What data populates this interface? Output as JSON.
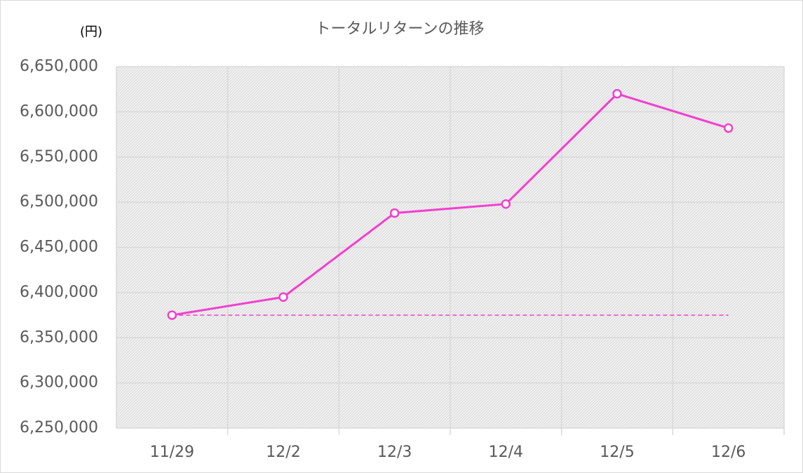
{
  "chart_data": {
    "type": "line",
    "title": "トータルリターンの推移",
    "y_label": "(円)",
    "categories": [
      "11/29",
      "12/2",
      "12/3",
      "12/4",
      "12/5",
      "12/6"
    ],
    "series": [
      {
        "color": "#f23fcf",
        "values": [
          6375000,
          6395000,
          6488000,
          6498000,
          6620000,
          6582000
        ],
        "markers": true
      },
      {
        "color": "#f23fcf",
        "values": [
          6375000,
          6375000,
          6375000,
          6375000,
          6375000,
          6375000
        ],
        "dashed": true
      }
    ],
    "ylim": [
      6250000,
      6650000
    ],
    "yticks": [
      {
        "value": 6250000,
        "label": "6,250,000"
      },
      {
        "value": 6300000,
        "label": "6,300,000"
      },
      {
        "value": 6350000,
        "label": "6,350,000"
      },
      {
        "value": 6400000,
        "label": "6,400,000"
      },
      {
        "value": 6450000,
        "label": "6,450,000"
      },
      {
        "value": 6500000,
        "label": "6,500,000"
      },
      {
        "value": 6550000,
        "label": "6,550,000"
      },
      {
        "value": 6600000,
        "label": "6,600,000"
      },
      {
        "value": 6650000,
        "label": "6,650,000"
      }
    ],
    "grid": true
  }
}
